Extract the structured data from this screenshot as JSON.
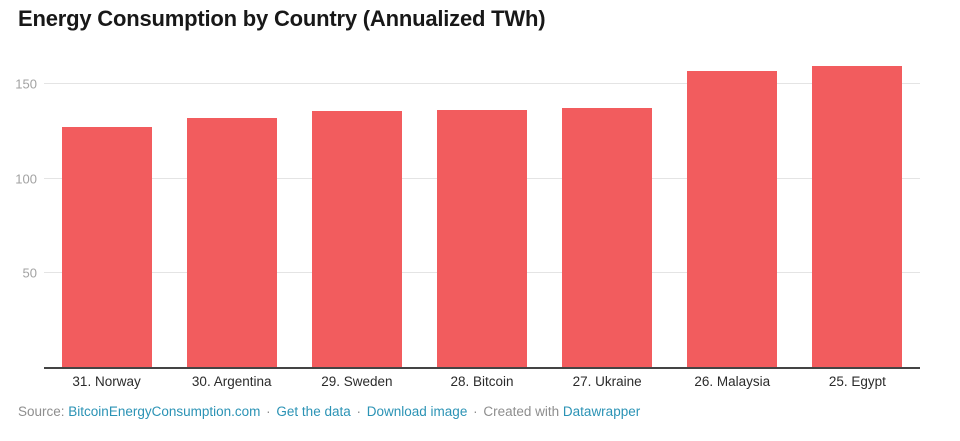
{
  "header": {
    "title": "Energy Consumption by Country (Annualized TWh)"
  },
  "chart_data": {
    "type": "bar",
    "title": "Energy Consumption by Country (Annualized TWh)",
    "categories": [
      "31. Norway",
      "30. Argentina",
      "29. Sweden",
      "28. Bitcoin",
      "27. Ukraine",
      "26. Malaysia",
      "25. Egypt"
    ],
    "values": [
      127.5,
      132.0,
      135.7,
      136.5,
      137.3,
      157.2,
      159.6
    ],
    "xlabel": "",
    "ylabel": "",
    "ylim": [
      0,
      164
    ],
    "yticks": [
      50,
      100,
      150
    ],
    "grid": true,
    "legend": false,
    "bar_color": "#f25c5e"
  },
  "footer": {
    "source_prefix": "Source:",
    "source_link": "BitcoinEnergyConsumption.com",
    "separator": "·",
    "get_data_link": "Get the data",
    "download_link": "Download image",
    "created_with": "Created with",
    "created_link": "Datawrapper"
  },
  "colors": {
    "bar": "#f25c5e",
    "link": "#2b93b5",
    "muted_text": "#8e8e8e",
    "tick_label": "#a2a2a2",
    "gridline": "#e4e4e4",
    "axis_line": "#444444",
    "category_label": "#2b2b2b",
    "title": "#181818",
    "background": "#ffffff"
  }
}
